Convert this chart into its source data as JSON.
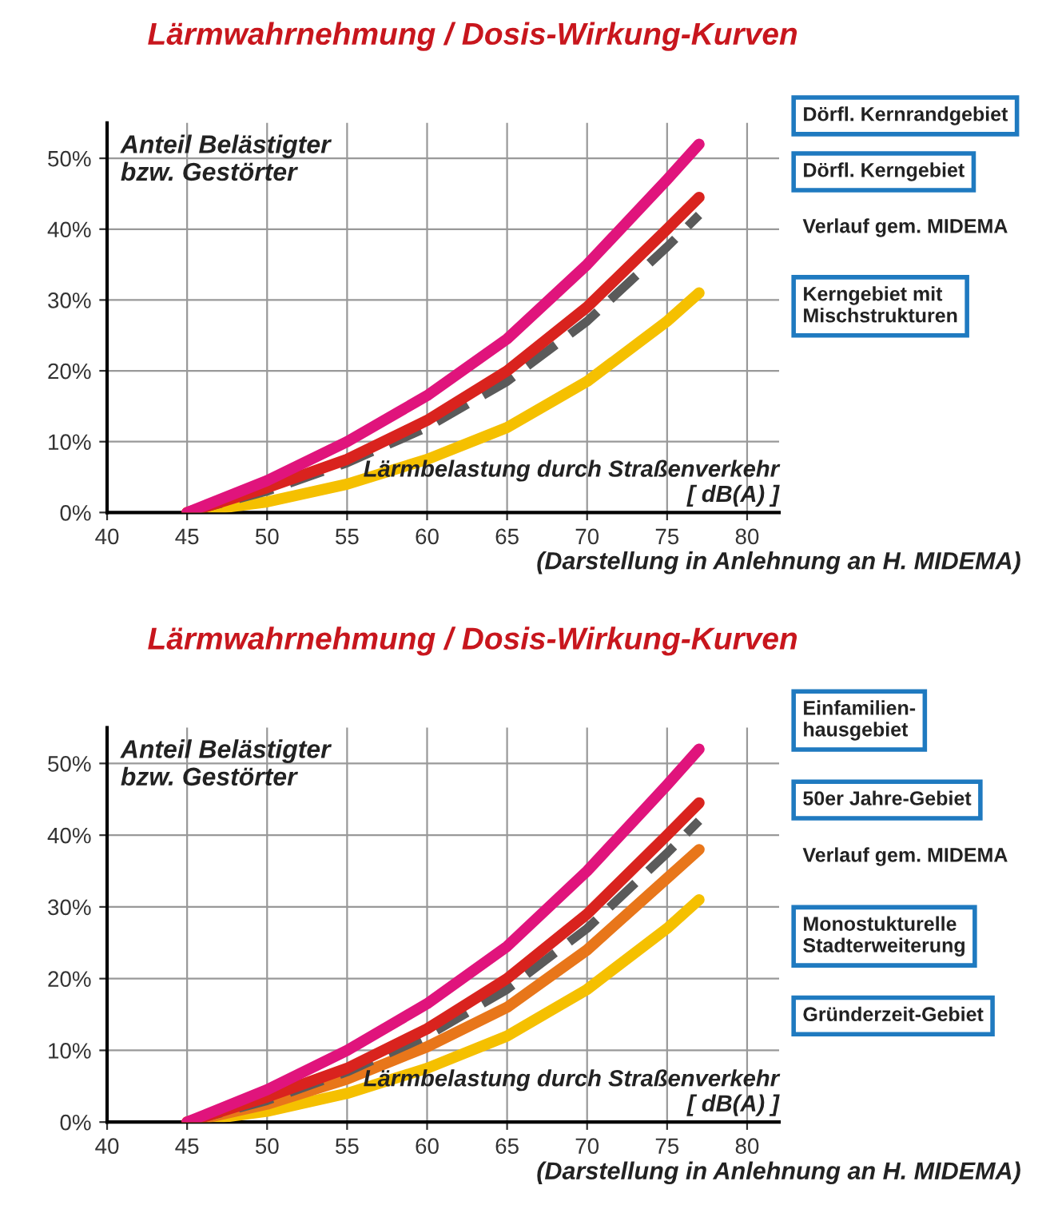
{
  "chart_data": [
    {
      "type": "line",
      "title": "Lärmwahrnehmung / Dosis-Wirkung-Kurven",
      "ylabel": "Anteil Belästigter\nbzw. Gestörter",
      "xlabel": "Lärmbelastung durch Straßenverkehr\n[ dB(A) ]",
      "x": [
        45,
        50,
        55,
        60,
        65,
        70,
        75,
        77
      ],
      "xlim": [
        40,
        82
      ],
      "ylim": [
        0,
        55
      ],
      "xticks": [
        40,
        45,
        50,
        55,
        60,
        65,
        70,
        75,
        80
      ],
      "yticks": [
        {
          "value": 0,
          "label": "0%"
        },
        {
          "value": 10,
          "label": "10%"
        },
        {
          "value": 20,
          "label": "20%"
        },
        {
          "value": 30,
          "label": "30%"
        },
        {
          "value": 40,
          "label": "40%"
        },
        {
          "value": 50,
          "label": "50%"
        }
      ],
      "grid": true,
      "legend": "right",
      "marker": "none",
      "series": [
        {
          "name": "Dörfl. Kernrandgebiet",
          "color": "#e0147c",
          "values": [
            0,
            4.5,
            10,
            16.5,
            24.5,
            35,
            47,
            52
          ]
        },
        {
          "name": "Dörfl. Kerngebiet",
          "color": "#d9231e",
          "values": [
            0,
            3.5,
            7.5,
            13,
            20,
            29,
            40,
            44.5
          ]
        },
        {
          "name": "Verlauf gem. MIDEMA",
          "color": "#5a5a5a",
          "line_style": "dashed",
          "values": [
            0,
            3,
            7,
            12,
            18.5,
            27,
            37.5,
            42
          ]
        },
        {
          "name": "Kerngebiet mit\nMischstrukturen",
          "color": "#f5c000",
          "values": [
            0,
            1.5,
            4,
            7.5,
            12,
            18.5,
            27,
            31
          ]
        }
      ],
      "annotations": [
        "(Darstellung in Anlehnung an H. MIDEMA)"
      ]
    },
    {
      "type": "line",
      "title": "Lärmwahrnehmung / Dosis-Wirkung-Kurven",
      "ylabel": "Anteil Belästigter\nbzw. Gestörter",
      "xlabel": "Lärmbelastung durch Straßenverkehr\n[ dB(A) ]",
      "x": [
        45,
        50,
        55,
        60,
        65,
        70,
        75,
        77
      ],
      "xlim": [
        40,
        82
      ],
      "ylim": [
        0,
        55
      ],
      "xticks": [
        40,
        45,
        50,
        55,
        60,
        65,
        70,
        75,
        80
      ],
      "yticks": [
        {
          "value": 0,
          "label": "0%"
        },
        {
          "value": 10,
          "label": "10%"
        },
        {
          "value": 20,
          "label": "20%"
        },
        {
          "value": 30,
          "label": "30%"
        },
        {
          "value": 40,
          "label": "40%"
        },
        {
          "value": 50,
          "label": "50%"
        }
      ],
      "grid": true,
      "legend": "right",
      "marker": "none",
      "series": [
        {
          "name": "Einfamilien-\nhausgebiet",
          "color": "#e0147c",
          "values": [
            0,
            4.5,
            10,
            16.5,
            24.5,
            35,
            47,
            52
          ]
        },
        {
          "name": "50er Jahre-Gebiet",
          "color": "#d9231e",
          "values": [
            0,
            3.5,
            7.5,
            13,
            20,
            29,
            40,
            44.5
          ]
        },
        {
          "name": "Verlauf gem. MIDEMA",
          "color": "#5a5a5a",
          "line_style": "dashed",
          "values": [
            0,
            3,
            7,
            12,
            18.5,
            27,
            37.5,
            42
          ]
        },
        {
          "name": "Monostukturelle\nStadterweiterung",
          "color": "#e8761a",
          "values": [
            0,
            2.5,
            6,
            10.5,
            16,
            24,
            34,
            38
          ]
        },
        {
          "name": "Gründerzeit-Gebiet",
          "color": "#f5c000",
          "values": [
            0,
            1.5,
            4,
            7.5,
            12,
            18.5,
            27,
            31
          ]
        }
      ],
      "annotations": [
        "(Darstellung in Anlehnung an H. MIDEMA)"
      ]
    }
  ]
}
